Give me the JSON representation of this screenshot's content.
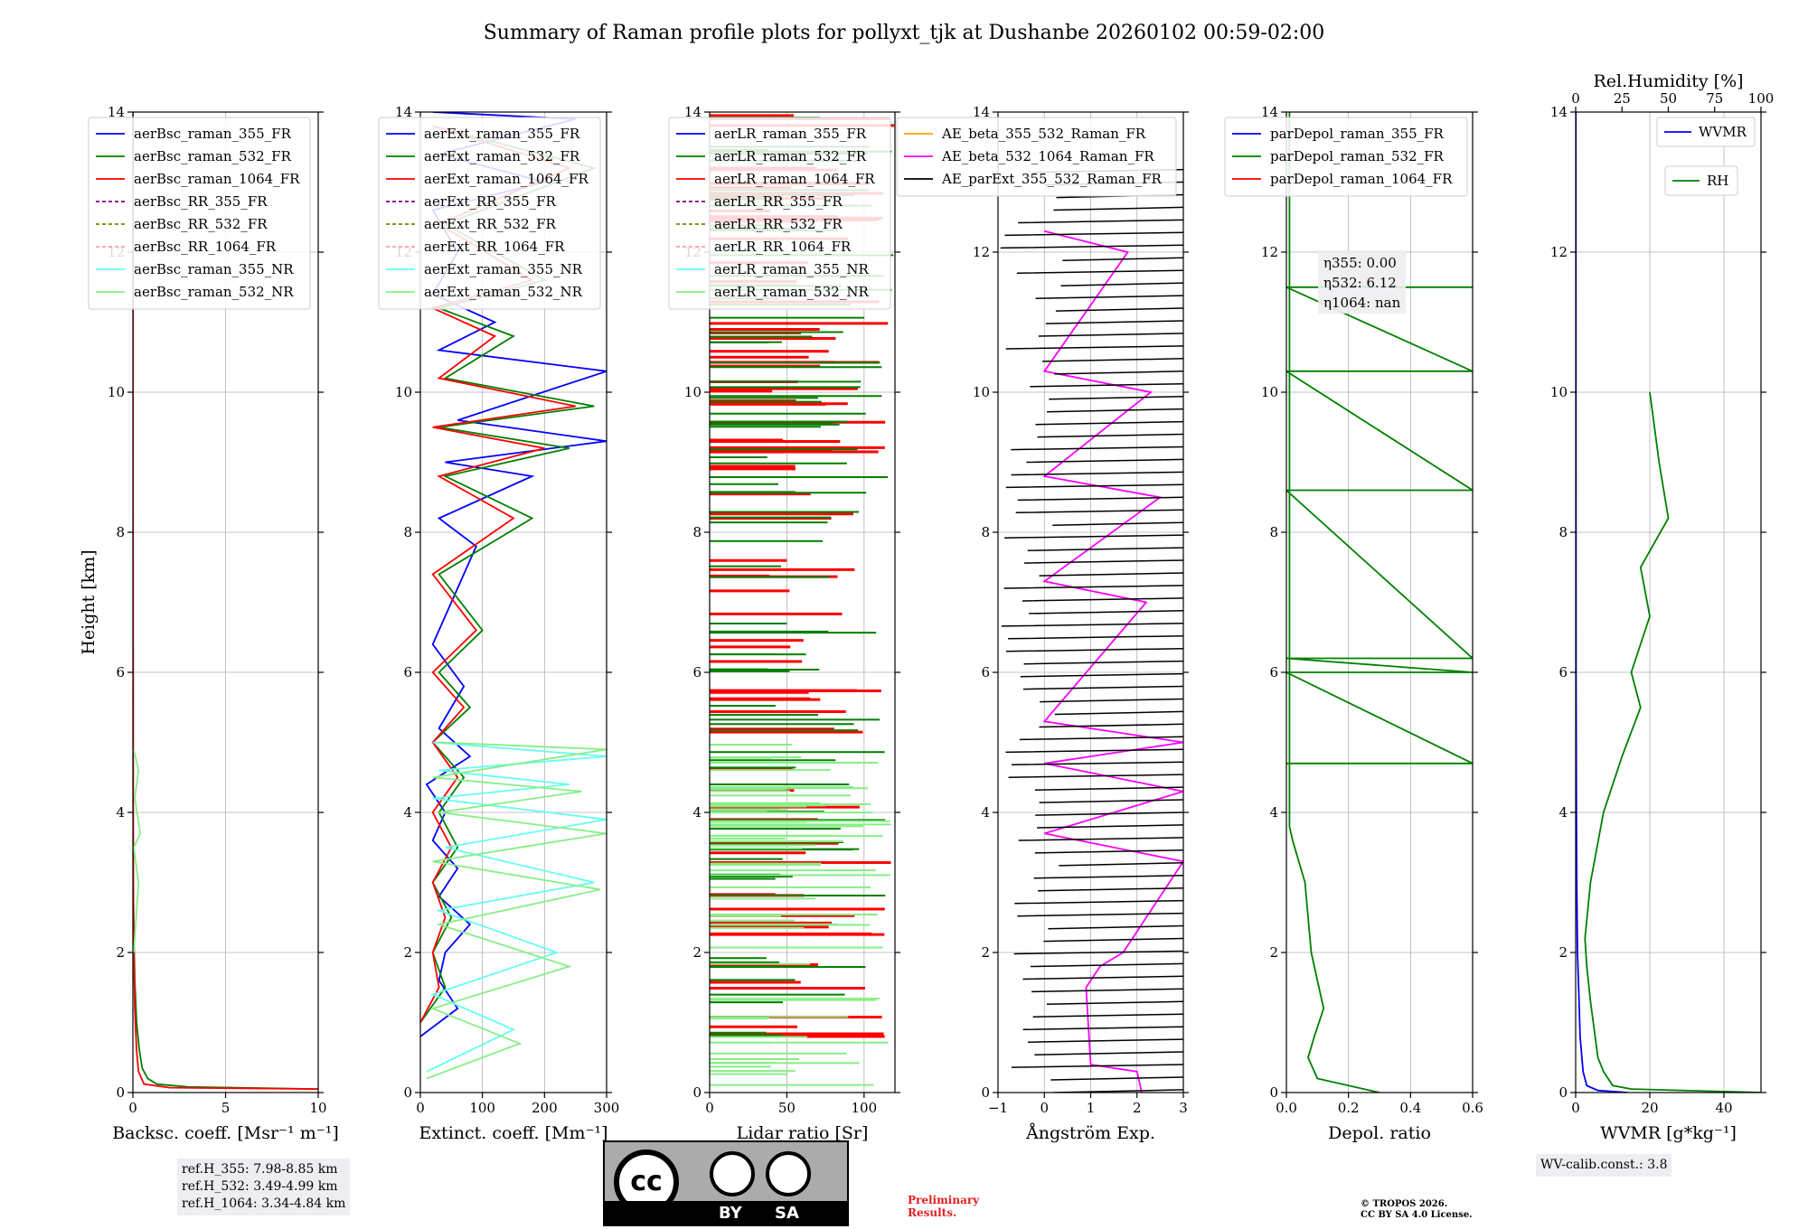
{
  "title": "Summary of Raman profile plots for pollyxt_tjk at Dushanbe 20260102 00:59-02:00",
  "chart_data": [
    {
      "type": "line",
      "id": "p1",
      "xlabel": "Backsc. coeff. [Msr⁻¹ m⁻¹]",
      "ylabel": "Height [km]",
      "xlim": [
        0,
        10
      ],
      "ylim": [
        0,
        14
      ],
      "xticks": [
        0,
        5,
        10
      ],
      "xtick_labels": [
        "0",
        "5",
        "10"
      ],
      "yticks": [
        0,
        2,
        4,
        6,
        8,
        10,
        12,
        14
      ],
      "ytick_labels": [
        "0",
        "2",
        "4",
        "6",
        "8",
        "10",
        "12",
        "14"
      ],
      "grid": true,
      "legend": [
        "aerBsc_raman_355_FR",
        "aerBsc_raman_532_FR",
        "aerBsc_raman_1064_FR",
        "aerBsc_RR_355_FR",
        "aerBsc_RR_532_FR",
        "aerBsc_RR_1064_FR",
        "aerBsc_raman_355_NR",
        "aerBsc_raman_532_NR"
      ],
      "legend_colors": [
        "#0000ff",
        "#008000",
        "#ff0000",
        "#800080",
        "#808000",
        "#ffa0a0",
        "#66ffee",
        "#88ee88"
      ],
      "legend_dashed": [
        false,
        false,
        false,
        true,
        true,
        true,
        false,
        false
      ],
      "legend_position": "top-left",
      "series": [
        {
          "name": "aerBsc_raman_532_FR",
          "color": "#008000",
          "x": [
            10,
            3.0,
            1.3,
            0.8,
            0.5,
            0.35,
            0.2,
            0.1,
            0.05,
            0.02,
            0
          ],
          "y": [
            0.05,
            0.08,
            0.12,
            0.2,
            0.35,
            0.6,
            1.0,
            1.6,
            2.3,
            3.0,
            4.0
          ]
        },
        {
          "name": "aerBsc_raman_1064_FR",
          "color": "#ff0000",
          "x": [
            10,
            2.0,
            0.6,
            0.3,
            0.2,
            0.1,
            0.05,
            0.02,
            0
          ],
          "y": [
            0.05,
            0.07,
            0.12,
            0.3,
            0.6,
            1.2,
            2.0,
            3.0,
            14
          ]
        },
        {
          "name": "aerBsc_raman_532_NR",
          "color": "#88ee88",
          "x": [
            0.05,
            0.3,
            0.05,
            0.4,
            0.1,
            0.3,
            0.05
          ],
          "y": [
            2.0,
            3.0,
            3.5,
            3.7,
            4.2,
            4.6,
            4.9
          ]
        }
      ],
      "annotation": [
        "ref.H_355: 7.98-8.85 km",
        "ref.H_532: 3.49-4.99 km",
        "ref.H_1064: 3.34-4.84 km"
      ]
    },
    {
      "type": "line",
      "id": "p2",
      "xlabel": "Extinct. coeff. [Mm⁻¹]",
      "xlim": [
        0,
        300
      ],
      "ylim": [
        0,
        14
      ],
      "xticks": [
        0,
        100,
        200,
        300
      ],
      "xtick_labels": [
        "0",
        "100",
        "200",
        "300"
      ],
      "yticks": [
        0,
        2,
        4,
        6,
        8,
        10,
        12,
        14
      ],
      "ytick_labels": [
        "0",
        "2",
        "4",
        "6",
        "8",
        "10",
        "12",
        "14"
      ],
      "grid": true,
      "legend": [
        "aerExt_raman_355_FR",
        "aerExt_raman_532_FR",
        "aerExt_raman_1064_FR",
        "aerExt_RR_355_FR",
        "aerExt_RR_532_FR",
        "aerExt_RR_1064_FR",
        "aerExt_raman_355_NR",
        "aerExt_raman_532_NR"
      ],
      "legend_colors": [
        "#0000ff",
        "#008000",
        "#ff0000",
        "#800080",
        "#808000",
        "#ffa0a0",
        "#66ffee",
        "#88ee88"
      ],
      "legend_dashed": [
        false,
        false,
        false,
        true,
        true,
        true,
        false,
        false
      ],
      "legend_position": "top-left",
      "series": [
        {
          "name": "aerExt_raman_355_FR",
          "color": "#0000ff",
          "x": [
            0,
            60,
            30,
            40,
            80,
            30,
            60,
            20,
            40,
            10,
            80,
            30,
            70,
            20,
            50,
            90,
            30,
            180,
            40,
            300,
            60,
            300,
            30,
            120,
            20,
            60,
            20,
            200,
            30,
            250,
            20
          ],
          "y": [
            0.8,
            1.2,
            1.6,
            2.0,
            2.4,
            2.8,
            3.2,
            3.6,
            4.0,
            4.4,
            4.8,
            5.2,
            5.8,
            6.4,
            7.0,
            7.8,
            8.2,
            8.8,
            9.0,
            9.3,
            9.6,
            10.3,
            10.6,
            11.0,
            11.4,
            12.0,
            12.6,
            13.0,
            13.4,
            13.9,
            14.0
          ]
        },
        {
          "name": "aerExt_raman_532_FR",
          "color": "#008000",
          "x": [
            0,
            40,
            20,
            50,
            20,
            60,
            30,
            70,
            20,
            80,
            30,
            100,
            30,
            180,
            40,
            240,
            30,
            280,
            40,
            150,
            30,
            200,
            40,
            280,
            20
          ],
          "y": [
            1.0,
            1.5,
            2.0,
            2.5,
            3.0,
            3.5,
            4.0,
            4.5,
            5.0,
            5.5,
            6.0,
            6.6,
            7.4,
            8.2,
            8.8,
            9.2,
            9.5,
            9.8,
            10.2,
            10.8,
            11.2,
            11.6,
            12.4,
            13.2,
            13.8
          ]
        },
        {
          "name": "aerExt_raman_1064_FR",
          "color": "#ff0000",
          "x": [
            0,
            30,
            20,
            40,
            20,
            50,
            20,
            60,
            20,
            70,
            20,
            90,
            20,
            150,
            30,
            200,
            20,
            250,
            30,
            120,
            20,
            180,
            30,
            240,
            20
          ],
          "y": [
            1.0,
            1.5,
            2.0,
            2.5,
            3.0,
            3.5,
            4.0,
            4.5,
            5.0,
            5.5,
            6.0,
            6.6,
            7.4,
            8.2,
            8.8,
            9.2,
            9.5,
            9.8,
            10.2,
            10.8,
            11.2,
            11.6,
            12.4,
            13.2,
            13.8
          ]
        },
        {
          "name": "aerExt_raman_355_NR",
          "color": "#66ffee",
          "x": [
            10,
            150,
            20,
            220,
            30,
            280,
            40,
            300,
            20,
            240,
            30,
            300,
            20
          ],
          "y": [
            0.3,
            0.9,
            1.4,
            2.0,
            2.6,
            3.0,
            3.5,
            3.9,
            4.2,
            4.4,
            4.6,
            4.8,
            5.0
          ]
        },
        {
          "name": "aerExt_raman_532_NR",
          "color": "#88ee88",
          "x": [
            10,
            160,
            20,
            240,
            30,
            290,
            20,
            300,
            30,
            260,
            20,
            300,
            30
          ],
          "y": [
            0.2,
            0.7,
            1.2,
            1.8,
            2.4,
            2.9,
            3.3,
            3.7,
            4.0,
            4.3,
            4.5,
            4.9,
            5.0
          ]
        }
      ]
    },
    {
      "type": "line",
      "id": "p3",
      "xlabel": "Lidar ratio [Sr]",
      "xlim": [
        0,
        120
      ],
      "ylim": [
        0,
        14
      ],
      "xticks": [
        0,
        50,
        100
      ],
      "xtick_labels": [
        "0",
        "50",
        "100"
      ],
      "yticks": [
        0,
        2,
        4,
        6,
        8,
        10,
        12,
        14
      ],
      "ytick_labels": [
        "0",
        "2",
        "4",
        "6",
        "8",
        "10",
        "12",
        "14"
      ],
      "grid": true,
      "legend": [
        "aerLR_raman_355_FR",
        "aerLR_raman_532_FR",
        "aerLR_raman_1064_FR",
        "aerLR_RR_355_FR",
        "aerLR_RR_532_FR",
        "aerLR_RR_1064_FR",
        "aerLR_raman_355_NR",
        "aerLR_raman_532_NR"
      ],
      "legend_colors": [
        "#0000ff",
        "#008000",
        "#ff0000",
        "#800080",
        "#808000",
        "#ffa0a0",
        "#66ffee",
        "#88ee88"
      ],
      "legend_dashed": [
        false,
        false,
        false,
        true,
        true,
        true,
        false,
        false
      ],
      "legend_position": "top-left",
      "series": [
        {
          "name": "aerLR_raman_1064_FR",
          "style": "bands",
          "color": "#ff0000",
          "x_range": [
            0,
            120
          ],
          "y_start": 0.8,
          "y_end": 14.0
        },
        {
          "name": "aerLR_raman_532_FR",
          "style": "bands",
          "color": "#008000",
          "x_range": [
            0,
            120
          ],
          "y_start": 0.8,
          "y_end": 14.0
        },
        {
          "name": "aerLR_raman_532_NR",
          "style": "bands",
          "color": "#88ee88",
          "x_range": [
            0,
            120
          ],
          "y_start": 0.1,
          "y_end": 5.0
        }
      ]
    },
    {
      "type": "line",
      "id": "p4",
      "xlabel": "Ångström Exp.",
      "xlim": [
        -1,
        3
      ],
      "ylim": [
        0,
        14
      ],
      "xticks": [
        -1,
        0,
        1,
        2,
        3
      ],
      "xtick_labels": [
        "−1",
        "0",
        "1",
        "2",
        "3"
      ],
      "yticks": [
        0,
        2,
        4,
        6,
        8,
        10,
        12,
        14
      ],
      "ytick_labels": [
        "0",
        "2",
        "4",
        "6",
        "8",
        "10",
        "12",
        "14"
      ],
      "grid": true,
      "legend": [
        "AE_beta_355_532_Raman_FR",
        "AE_beta_532_1064_Raman_FR",
        "AE_parExt_355_532_Raman_FR"
      ],
      "legend_colors": [
        "#ffa500",
        "#ff00ff",
        "#000000"
      ],
      "legend_dashed": [
        false,
        false,
        false
      ],
      "legend_position": "top-left",
      "series": [
        {
          "name": "AE_beta_532_1064_Raman_FR",
          "color": "#ff00ff",
          "x": [
            2.1,
            2.0,
            1.0,
            0.9,
            1.2,
            1.7,
            2.0,
            2.3,
            2.7,
            3.0,
            0.0,
            3.0,
            0.0,
            3.0,
            0.0,
            2.2,
            0.0,
            2.5,
            0.0,
            2.3,
            0.0,
            1.8,
            0.0
          ],
          "y": [
            0.0,
            0.3,
            0.4,
            1.5,
            1.8,
            2.0,
            2.3,
            2.6,
            3.0,
            3.3,
            3.7,
            4.3,
            4.7,
            5.0,
            5.3,
            7.0,
            7.3,
            8.5,
            8.8,
            10.0,
            10.3,
            12.0,
            12.3
          ]
        },
        {
          "name": "AE_parExt_355_532_Raman_FR",
          "style": "steps",
          "color": "#000000",
          "x_range": [
            -1,
            3
          ],
          "y_start": 0.0,
          "y_end": 13.2
        }
      ]
    },
    {
      "type": "line",
      "id": "p5",
      "xlabel": "Depol. ratio",
      "xlim": [
        0,
        0.6
      ],
      "ylim": [
        0,
        14
      ],
      "xticks": [
        0,
        0.2,
        0.4,
        0.6
      ],
      "xtick_labels": [
        "0.0",
        "0.2",
        "0.4",
        "0.6"
      ],
      "yticks": [
        0,
        2,
        4,
        6,
        8,
        10,
        12,
        14
      ],
      "ytick_labels": [
        "0",
        "2",
        "4",
        "6",
        "8",
        "10",
        "12",
        "14"
      ],
      "grid": true,
      "legend": [
        "parDepol_raman_355_FR",
        "parDepol_raman_532_FR",
        "parDepol_raman_1064_FR"
      ],
      "legend_colors": [
        "#0000ff",
        "#008000",
        "#ff0000"
      ],
      "legend_dashed": [
        false,
        false,
        false
      ],
      "legend_position": "top-left",
      "series": [
        {
          "name": "parDepol_raman_532_FR",
          "color": "#008000",
          "x": [
            0.3,
            0.1,
            0.07,
            0.09,
            0.12,
            0.1,
            0.08,
            0.07,
            0.06,
            0.04,
            0.02,
            0.01,
            0.01
          ],
          "y": [
            0.0,
            0.2,
            0.5,
            0.8,
            1.2,
            1.6,
            2.0,
            2.5,
            3.0,
            3.3,
            3.6,
            3.8,
            14.0
          ]
        },
        {
          "name": "parDepol_raman_532_FR_spikes",
          "color": "#008000",
          "x": [
            0.0,
            0.6,
            0.0,
            0.6,
            0.0,
            0.6,
            0.0,
            0.6,
            0.0,
            0.6,
            0.0,
            0.6
          ],
          "y": [
            4.7,
            4.7,
            6.0,
            6.0,
            6.2,
            6.2,
            8.6,
            8.6,
            10.3,
            10.3,
            11.5,
            11.5
          ]
        }
      ],
      "annotation": [
        "η355: 0.00",
        "η532: 6.12",
        "η1064: nan"
      ]
    },
    {
      "type": "line",
      "id": "p6",
      "xlabel": "WVMR [g*kg⁻¹]",
      "xlim": [
        0,
        50
      ],
      "ylim": [
        0,
        14
      ],
      "xticks": [
        0,
        20,
        40
      ],
      "xtick_labels": [
        "0",
        "20",
        "40"
      ],
      "yticks": [
        0,
        2,
        4,
        6,
        8,
        10,
        12,
        14
      ],
      "ytick_labels": [
        "0",
        "2",
        "4",
        "6",
        "8",
        "10",
        "12",
        "14"
      ],
      "grid": true,
      "legend": [
        "WVMR",
        "RH"
      ],
      "legend_colors": [
        "#0000ff",
        "#008000"
      ],
      "legend_dashed": [
        false,
        false
      ],
      "legend_position": "top-right",
      "top_axis": {
        "label": "Rel.Humidity [%]",
        "xlim": [
          0,
          100
        ],
        "xticks": [
          0,
          25,
          50,
          75,
          100
        ],
        "xtick_labels": [
          "0",
          "25",
          "50",
          "75",
          "100"
        ]
      },
      "series": [
        {
          "name": "WVMR",
          "color": "#0000ff",
          "axis": "bottom",
          "x": [
            14,
            6,
            3,
            2,
            1.2,
            0.8,
            0.5,
            0.3,
            0.2,
            0.1,
            0.05
          ],
          "y": [
            0.0,
            0.03,
            0.1,
            0.3,
            0.8,
            1.5,
            2.0,
            3.0,
            4.0,
            6.0,
            14.0
          ]
        },
        {
          "name": "RH",
          "color": "#008000",
          "axis": "top",
          "x": [
            100,
            30,
            20,
            15,
            12,
            10,
            8,
            6,
            5,
            8,
            15,
            25,
            35,
            30,
            40,
            35,
            50,
            45,
            40
          ],
          "y": [
            0.0,
            0.05,
            0.1,
            0.3,
            0.5,
            0.9,
            1.3,
            1.8,
            2.2,
            3.0,
            4.0,
            4.8,
            5.5,
            6.0,
            6.8,
            7.5,
            8.2,
            9.0,
            10.0
          ]
        }
      ],
      "annotation": [
        "WV-calib.const.: 3.8"
      ]
    }
  ],
  "license": {
    "cc": "cc",
    "by": "BY",
    "sa": "SA"
  },
  "preliminary": [
    "Preliminary",
    "Results."
  ],
  "copyright": [
    "© TROPOS 2026.",
    "CC BY SA 4.0 License."
  ]
}
